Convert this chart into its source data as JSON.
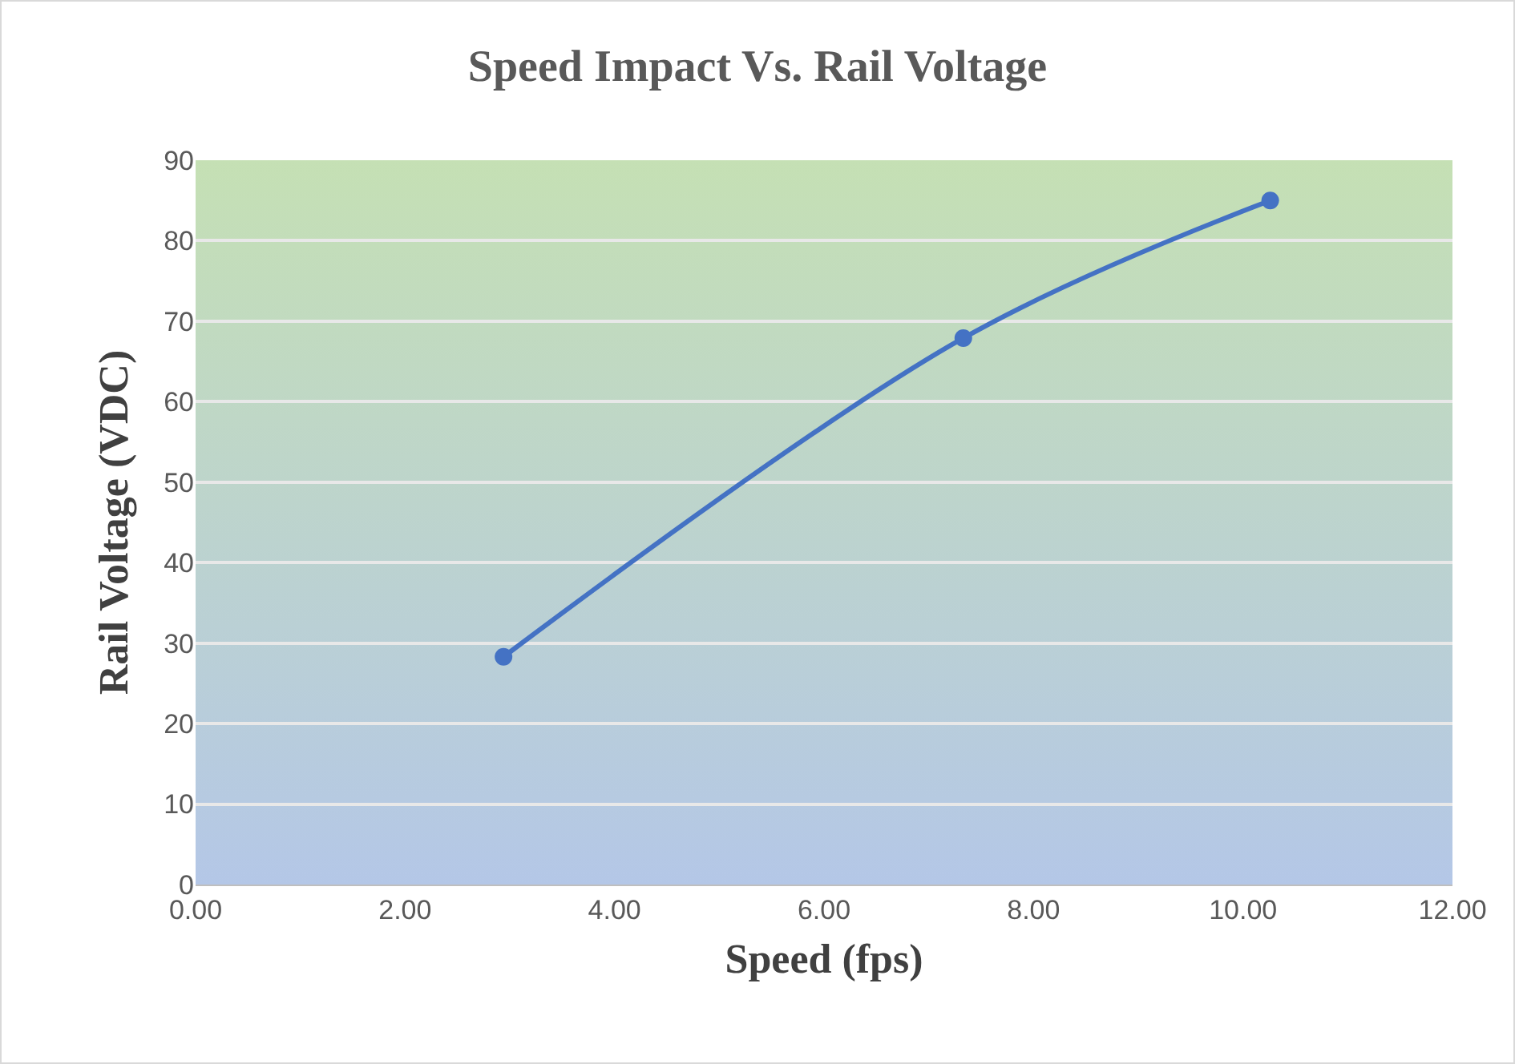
{
  "chart_data": {
    "type": "line",
    "title": "Speed Impact Vs. Rail Voltage",
    "xlabel": "Speed (fps)",
    "ylabel": "Rail Voltage (VDC)",
    "x": [
      2.94,
      7.33,
      10.26
    ],
    "series": [
      {
        "color": "#4472c4",
        "values": [
          28.3,
          67.9,
          85.0
        ]
      }
    ],
    "xlim": [
      0,
      12
    ],
    "xticks": [
      {
        "value": 0,
        "label": "0.00"
      },
      {
        "value": 2,
        "label": "2.00"
      },
      {
        "value": 4,
        "label": "4.00"
      },
      {
        "value": 6,
        "label": "6.00"
      },
      {
        "value": 8,
        "label": "8.00"
      },
      {
        "value": 10,
        "label": "10.00"
      },
      {
        "value": 12,
        "label": "12.00"
      }
    ],
    "ylim": [
      0,
      90
    ],
    "yticks": [
      0,
      10,
      20,
      30,
      40,
      50,
      60,
      70,
      80,
      90
    ],
    "grid": "y",
    "marker": "circle",
    "line_style": "solid"
  }
}
